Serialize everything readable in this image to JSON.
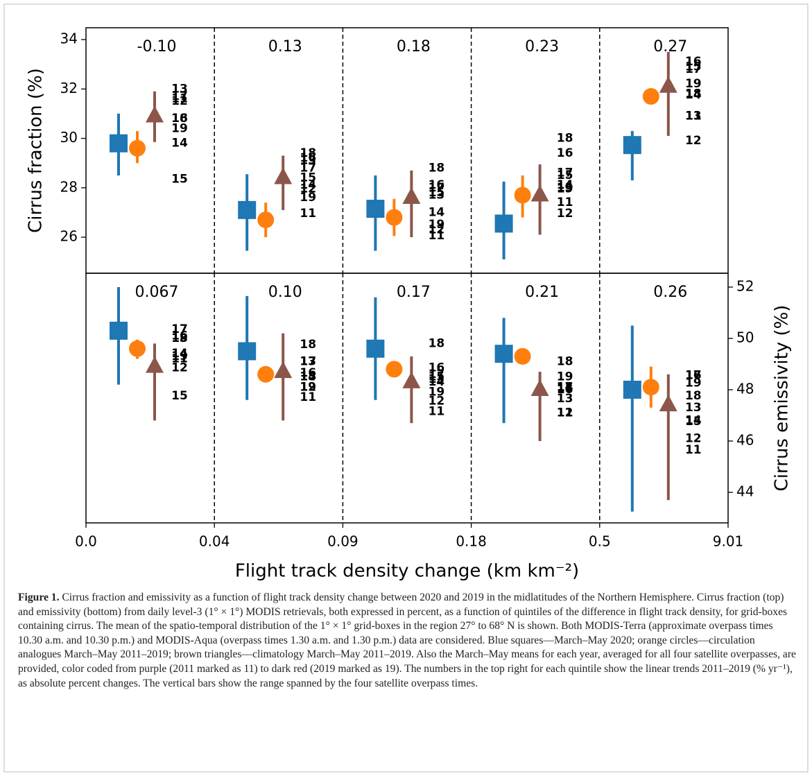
{
  "chart_data": [
    {
      "type": "scatter",
      "ylabel": "Cirrus fraction (%)",
      "y_axis_side": "left",
      "ylim": [
        24.54,
        34.48
      ],
      "yticks": [
        26,
        28,
        30,
        32,
        34
      ],
      "trend_labels": [
        "-0.10",
        "0.13",
        "0.18",
        "0.23",
        "0.27"
      ],
      "series": [
        {
          "marker": "square",
          "color": "#1f77b4",
          "values": [
            29.8,
            27.1,
            27.15,
            26.55,
            29.73
          ],
          "range_low": [
            28.5,
            25.45,
            25.45,
            25.1,
            28.3
          ],
          "range_high": [
            31.0,
            28.55,
            28.5,
            28.25,
            30.3
          ]
        },
        {
          "marker": "circle",
          "color": "#ff7f0e",
          "values": [
            29.6,
            26.7,
            26.8,
            27.7,
            31.7
          ],
          "range_low": [
            29.0,
            26.0,
            26.05,
            26.8,
            null
          ],
          "range_high": [
            30.3,
            27.4,
            27.55,
            28.5,
            null
          ]
        },
        {
          "marker": "triangle",
          "color": "#8c564b",
          "values": [
            30.9,
            28.4,
            27.6,
            27.7,
            32.1
          ],
          "range_low": [
            29.85,
            27.1,
            26.0,
            26.1,
            30.1
          ],
          "range_high": [
            31.9,
            29.3,
            28.7,
            28.95,
            33.5
          ]
        }
      ],
      "year_series": [
        {
          "label": "11",
          "color": "#800080",
          "values": [
            31.6,
            26.95,
            26.05,
            27.4,
            30.9
          ]
        },
        {
          "label": "12",
          "color": "#00008b",
          "values": [
            31.5,
            27.95,
            26.3,
            26.95,
            29.9
          ]
        },
        {
          "label": "13",
          "color": "#1a9a9a",
          "values": [
            32.0,
            29.1,
            27.7,
            28.0,
            30.9
          ]
        },
        {
          "label": "14",
          "color": "#006400",
          "values": [
            29.8,
            28.1,
            27.0,
            28.1,
            31.75
          ]
        },
        {
          "label": "15",
          "color": "#b5b520",
          "values": [
            28.35,
            28.4,
            27.8,
            28.5,
            32.9
          ]
        },
        {
          "label": "16",
          "color": "#ffd700",
          "values": [
            30.8,
            29.2,
            28.1,
            29.4,
            33.1
          ]
        },
        {
          "label": "17",
          "color": "#f5a000",
          "values": [
            31.7,
            28.8,
            28.0,
            28.6,
            32.8
          ]
        },
        {
          "label": "18",
          "color": "#ff0000",
          "values": [
            30.8,
            29.4,
            28.8,
            30.0,
            31.8
          ]
        },
        {
          "label": "19",
          "color": "#8b0000",
          "values": [
            30.4,
            27.6,
            26.5,
            27.95,
            32.2
          ]
        }
      ]
    },
    {
      "type": "scatter",
      "ylabel": "Cirrus emissivity (%)",
      "y_axis_side": "right",
      "ylim": [
        42.81,
        52.54
      ],
      "yticks": [
        44,
        46,
        48,
        50,
        52
      ],
      "trend_labels": [
        "0.067",
        "0.10",
        "0.17",
        "0.21",
        "0.26"
      ],
      "xlabel": "Flight track density change (km km⁻²)",
      "x_tick_labels": [
        "0.0",
        "0.04",
        "0.09",
        "0.18",
        "0.5",
        "9.01"
      ],
      "series": [
        {
          "marker": "square",
          "color": "#1f77b4",
          "values": [
            50.3,
            49.5,
            49.6,
            49.4,
            48.0
          ],
          "range_low": [
            48.2,
            47.6,
            47.6,
            46.7,
            43.25
          ],
          "range_high": [
            52.0,
            51.65,
            51.6,
            50.8,
            50.5
          ]
        },
        {
          "marker": "circle",
          "color": "#ff7f0e",
          "values": [
            49.6,
            48.6,
            48.8,
            49.3,
            48.1
          ],
          "range_low": [
            49.2,
            null,
            null,
            null,
            47.3
          ],
          "range_high": [
            49.95,
            null,
            null,
            null,
            48.9
          ]
        },
        {
          "marker": "triangle",
          "color": "#8c564b",
          "values": [
            48.9,
            48.7,
            48.3,
            48.0,
            47.4
          ],
          "range_low": [
            46.8,
            46.8,
            46.7,
            46.0,
            43.7
          ],
          "range_high": [
            49.8,
            50.2,
            49.3,
            48.7,
            48.6
          ]
        }
      ],
      "year_series": [
        {
          "label": "11",
          "color": "#800080",
          "values": [
            49.2,
            47.7,
            47.15,
            47.1,
            45.65
          ]
        },
        {
          "label": "12",
          "color": "#00008b",
          "values": [
            48.85,
            48.1,
            47.55,
            47.1,
            46.1
          ]
        },
        {
          "label": "13",
          "color": "#1a9a9a",
          "values": [
            50.0,
            49.1,
            48.4,
            47.65,
            47.3
          ]
        },
        {
          "label": "14",
          "color": "#006400",
          "values": [
            49.4,
            48.5,
            48.3,
            48.1,
            46.8
          ]
        },
        {
          "label": "15",
          "color": "#b5b520",
          "values": [
            47.75,
            48.5,
            48.5,
            48.05,
            46.75
          ]
        },
        {
          "label": "16",
          "color": "#ffd700",
          "values": [
            50.1,
            48.65,
            48.85,
            48.0,
            48.55
          ]
        },
        {
          "label": "17",
          "color": "#f5a000",
          "values": [
            50.35,
            49.1,
            48.6,
            48.1,
            48.55
          ]
        },
        {
          "label": "18",
          "color": "#ff0000",
          "values": [
            50.0,
            49.75,
            49.8,
            49.1,
            47.75
          ]
        },
        {
          "label": "19",
          "color": "#8b0000",
          "values": [
            49.3,
            48.1,
            47.9,
            48.5,
            48.25
          ]
        }
      ]
    }
  ],
  "caption": {
    "label": "Figure 1.",
    "text": "Cirrus fraction and emissivity as a function of flight track density change between 2020 and 2019 in the midlatitudes of the Northern Hemisphere. Cirrus fraction (top) and emissivity (bottom) from daily level-3 (1° × 1°) MODIS retrievals, both expressed in percent, as a function of quintiles of the difference in flight track density, for grid-boxes containing cirrus. The mean of the spatio-temporal distribution of the 1° × 1° grid-boxes in the region 27° to 68° N is shown. Both MODIS-Terra (approximate overpass times 10.30 a.m. and 10.30 p.m.) and MODIS-Aqua (overpass times 1.30 a.m. and 1.30 p.m.) data are considered. Blue squares—March–May 2020; orange circles—circulation analogues March–May 2011–2019; brown triangles—climatology March–May 2011–2019. Also the March–May means for each year, averaged for all four satellite overpasses, are provided, color coded from purple (2011 marked as 11) to dark red (2019 marked as 19). The numbers in the top right for each quintile show the linear trends 2011–2019 (% yr⁻¹), as absolute percent changes. The vertical bars show the range spanned by the four satellite overpass times."
  }
}
